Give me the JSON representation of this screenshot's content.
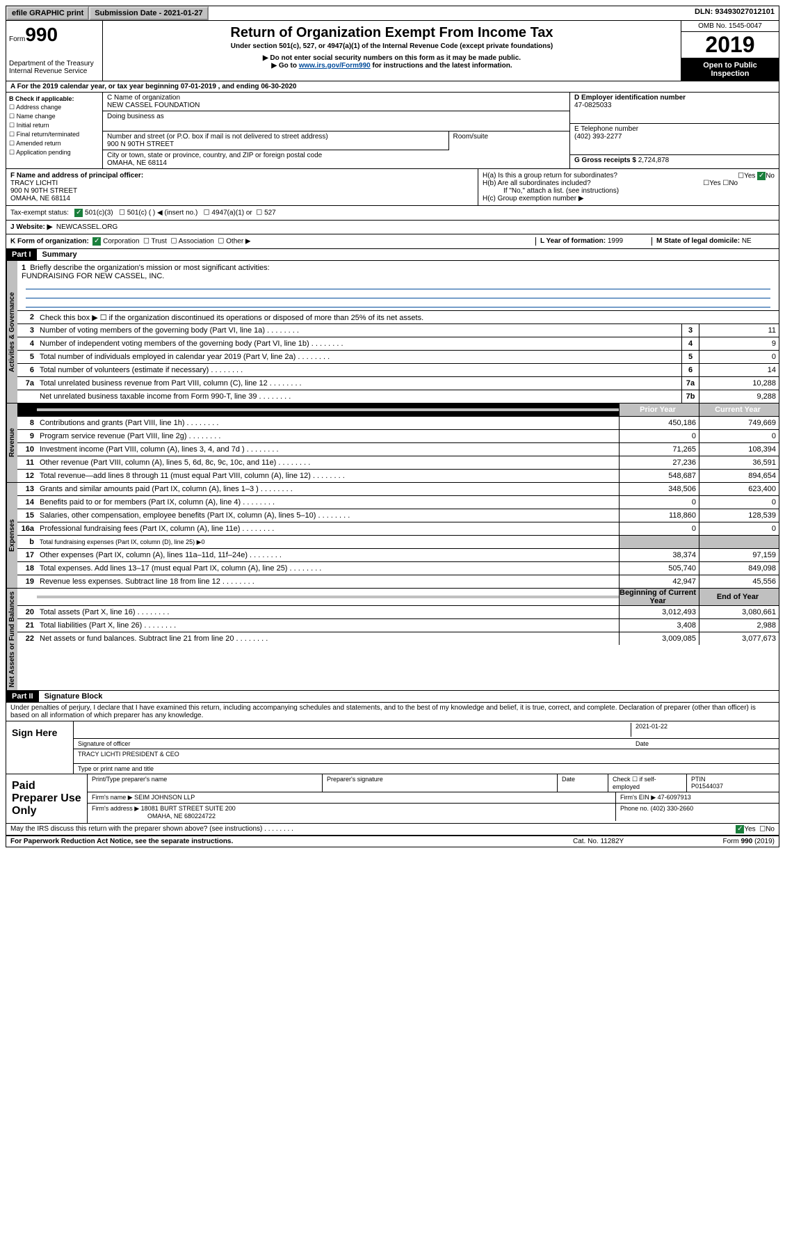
{
  "topbar": {
    "efile": "efile GRAPHIC print",
    "submission_label": "Submission Date - 2021-01-27",
    "dln": "DLN: 93493027012101"
  },
  "header": {
    "form_prefix": "Form",
    "form_number": "990",
    "dept": "Department of the Treasury\nInternal Revenue Service",
    "title": "Return of Organization Exempt From Income Tax",
    "subtitle": "Under section 501(c), 527, or 4947(a)(1) of the Internal Revenue Code (except private foundations)",
    "note1": "▶ Do not enter social security numbers on this form as it may be made public.",
    "note2_pre": "▶ Go to ",
    "note2_link": "www.irs.gov/Form990",
    "note2_post": " for instructions and the latest information.",
    "omb": "OMB No. 1545-0047",
    "year": "2019",
    "inspect": "Open to Public Inspection"
  },
  "section_a": "A For the 2019 calendar year, or tax year beginning 07-01-2019   , and ending 06-30-2020",
  "box_b": {
    "heading": "B Check if applicable:",
    "opts": [
      "Address change",
      "Name change",
      "Initial return",
      "Final return/terminated",
      "Amended return",
      "Application pending"
    ]
  },
  "box_c": {
    "label": "C Name of organization",
    "name": "NEW CASSEL FOUNDATION",
    "dba_label": "Doing business as",
    "street_label": "Number and street (or P.O. box if mail is not delivered to street address)",
    "room_label": "Room/suite",
    "street": "900 N 90TH STREET",
    "city_label": "City or town, state or province, country, and ZIP or foreign postal code",
    "city": "OMAHA, NE  68114"
  },
  "box_d": {
    "label": "D Employer identification number",
    "value": "47-0825033"
  },
  "box_e": {
    "label": "E Telephone number",
    "value": "(402) 393-2277"
  },
  "box_g": {
    "label": "G Gross receipts $",
    "value": "2,724,878"
  },
  "box_f": {
    "label": "F  Name and address of principal officer:",
    "name": "TRACY LICHTI",
    "street": "900 N 90TH STREET",
    "city": "OMAHA, NE  68114"
  },
  "box_h": {
    "a": "H(a)  Is this a group return for subordinates?",
    "b": "H(b)  Are all subordinates included?",
    "b_note": "If \"No,\" attach a list. (see instructions)",
    "c": "H(c)  Group exemption number ▶",
    "yes": "Yes",
    "no": "No"
  },
  "tax_status": {
    "label": "Tax-exempt status:",
    "c3": "501(c)(3)",
    "c": "501(c) (   ) ◀ (insert no.)",
    "a1": "4947(a)(1) or",
    "s527": "527"
  },
  "box_j": {
    "label": "J   Website: ▶",
    "value": "NEWCASSEL.ORG"
  },
  "box_k": {
    "label": "K Form of organization:",
    "corp": "Corporation",
    "trust": "Trust",
    "assoc": "Association",
    "other": "Other ▶"
  },
  "box_l": {
    "label": "L Year of formation:",
    "value": "1999"
  },
  "box_m": {
    "label": "M State of legal domicile:",
    "value": "NE"
  },
  "part1": {
    "label": "Part I",
    "title": "Summary"
  },
  "summary": {
    "q1": "Briefly describe the organization's mission or most significant activities:",
    "mission": "FUNDRAISING FOR NEW CASSEL, INC.",
    "q2": "Check this box ▶ ☐  if the organization discontinued its operations or disposed of more than 25% of its net assets.",
    "lines": [
      {
        "n": "3",
        "t": "Number of voting members of the governing body (Part VI, line 1a)",
        "b": "3",
        "v2": "11"
      },
      {
        "n": "4",
        "t": "Number of independent voting members of the governing body (Part VI, line 1b)",
        "b": "4",
        "v2": "9"
      },
      {
        "n": "5",
        "t": "Total number of individuals employed in calendar year 2019 (Part V, line 2a)",
        "b": "5",
        "v2": "0"
      },
      {
        "n": "6",
        "t": "Total number of volunteers (estimate if necessary)",
        "b": "6",
        "v2": "14"
      },
      {
        "n": "7a",
        "t": "Total unrelated business revenue from Part VIII, column (C), line 12",
        "b": "7a",
        "v2": "10,288"
      },
      {
        "n": "",
        "t": "Net unrelated business taxable income from Form 990-T, line 39",
        "b": "7b",
        "v2": "9,288"
      }
    ],
    "col_prior": "Prior Year",
    "col_current": "Current Year",
    "revenue": [
      {
        "n": "8",
        "t": "Contributions and grants (Part VIII, line 1h)",
        "v1": "450,186",
        "v2": "749,669"
      },
      {
        "n": "9",
        "t": "Program service revenue (Part VIII, line 2g)",
        "v1": "0",
        "v2": "0"
      },
      {
        "n": "10",
        "t": "Investment income (Part VIII, column (A), lines 3, 4, and 7d )",
        "v1": "71,265",
        "v2": "108,394"
      },
      {
        "n": "11",
        "t": "Other revenue (Part VIII, column (A), lines 5, 6d, 8c, 9c, 10c, and 11e)",
        "v1": "27,236",
        "v2": "36,591"
      },
      {
        "n": "12",
        "t": "Total revenue—add lines 8 through 11 (must equal Part VIII, column (A), line 12)",
        "v1": "548,687",
        "v2": "894,654"
      }
    ],
    "expenses": [
      {
        "n": "13",
        "t": "Grants and similar amounts paid (Part IX, column (A), lines 1–3 )",
        "v1": "348,506",
        "v2": "623,400"
      },
      {
        "n": "14",
        "t": "Benefits paid to or for members (Part IX, column (A), line 4)",
        "v1": "0",
        "v2": "0"
      },
      {
        "n": "15",
        "t": "Salaries, other compensation, employee benefits (Part IX, column (A), lines 5–10)",
        "v1": "118,860",
        "v2": "128,539"
      },
      {
        "n": "16a",
        "t": "Professional fundraising fees (Part IX, column (A), line 11e)",
        "v1": "0",
        "v2": "0"
      },
      {
        "n": "b",
        "t": "Total fundraising expenses (Part IX, column (D), line 25) ▶0",
        "shaded": true
      },
      {
        "n": "17",
        "t": "Other expenses (Part IX, column (A), lines 11a–11d, 11f–24e)",
        "v1": "38,374",
        "v2": "97,159"
      },
      {
        "n": "18",
        "t": "Total expenses. Add lines 13–17 (must equal Part IX, column (A), line 25)",
        "v1": "505,740",
        "v2": "849,098"
      },
      {
        "n": "19",
        "t": "Revenue less expenses. Subtract line 18 from line 12",
        "v1": "42,947",
        "v2": "45,556"
      }
    ],
    "col_begin": "Beginning of Current Year",
    "col_end": "End of Year",
    "netassets": [
      {
        "n": "20",
        "t": "Total assets (Part X, line 16)",
        "v1": "3,012,493",
        "v2": "3,080,661"
      },
      {
        "n": "21",
        "t": "Total liabilities (Part X, line 26)",
        "v1": "3,408",
        "v2": "2,988"
      },
      {
        "n": "22",
        "t": "Net assets or fund balances. Subtract line 21 from line 20",
        "v1": "3,009,085",
        "v2": "3,077,673"
      }
    ],
    "tabs": {
      "gov": "Activities & Governance",
      "rev": "Revenue",
      "exp": "Expenses",
      "net": "Net Assets or Fund Balances"
    }
  },
  "part2": {
    "label": "Part II",
    "title": "Signature Block",
    "perjury": "Under penalties of perjury, I declare that I have examined this return, including accompanying schedules and statements, and to the best of my knowledge and belief, it is true, correct, and complete. Declaration of preparer (other than officer) is based on all information of which preparer has any knowledge."
  },
  "sign": {
    "here": "Sign Here",
    "sig_label": "Signature of officer",
    "date": "2021-01-22",
    "date_label": "Date",
    "name": "TRACY LICHTI  PRESIDENT & CEO",
    "name_label": "Type or print name and title"
  },
  "paid": {
    "label": "Paid Preparer Use Only",
    "col1": "Print/Type preparer's name",
    "col2": "Preparer's signature",
    "col3": "Date",
    "col4": "Check ☐ if self-employed",
    "ptin_label": "PTIN",
    "ptin": "P01544037",
    "firm_name_label": "Firm's name    ▶",
    "firm_name": "SEIM JOHNSON LLP",
    "firm_ein_label": "Firm's EIN ▶",
    "firm_ein": "47-6097913",
    "firm_addr_label": "Firm's address ▶",
    "firm_addr": "18081 BURT STREET SUITE 200",
    "firm_city": "OMAHA, NE  680224722",
    "phone_label": "Phone no.",
    "phone": "(402) 330-2660"
  },
  "irs_discuss": {
    "q": "May the IRS discuss this return with the preparer shown above? (see instructions)",
    "yes": "Yes",
    "no": "No"
  },
  "footer": {
    "pra": "For Paperwork Reduction Act Notice, see the separate instructions.",
    "cat": "Cat. No. 11282Y",
    "form": "Form 990 (2019)"
  }
}
